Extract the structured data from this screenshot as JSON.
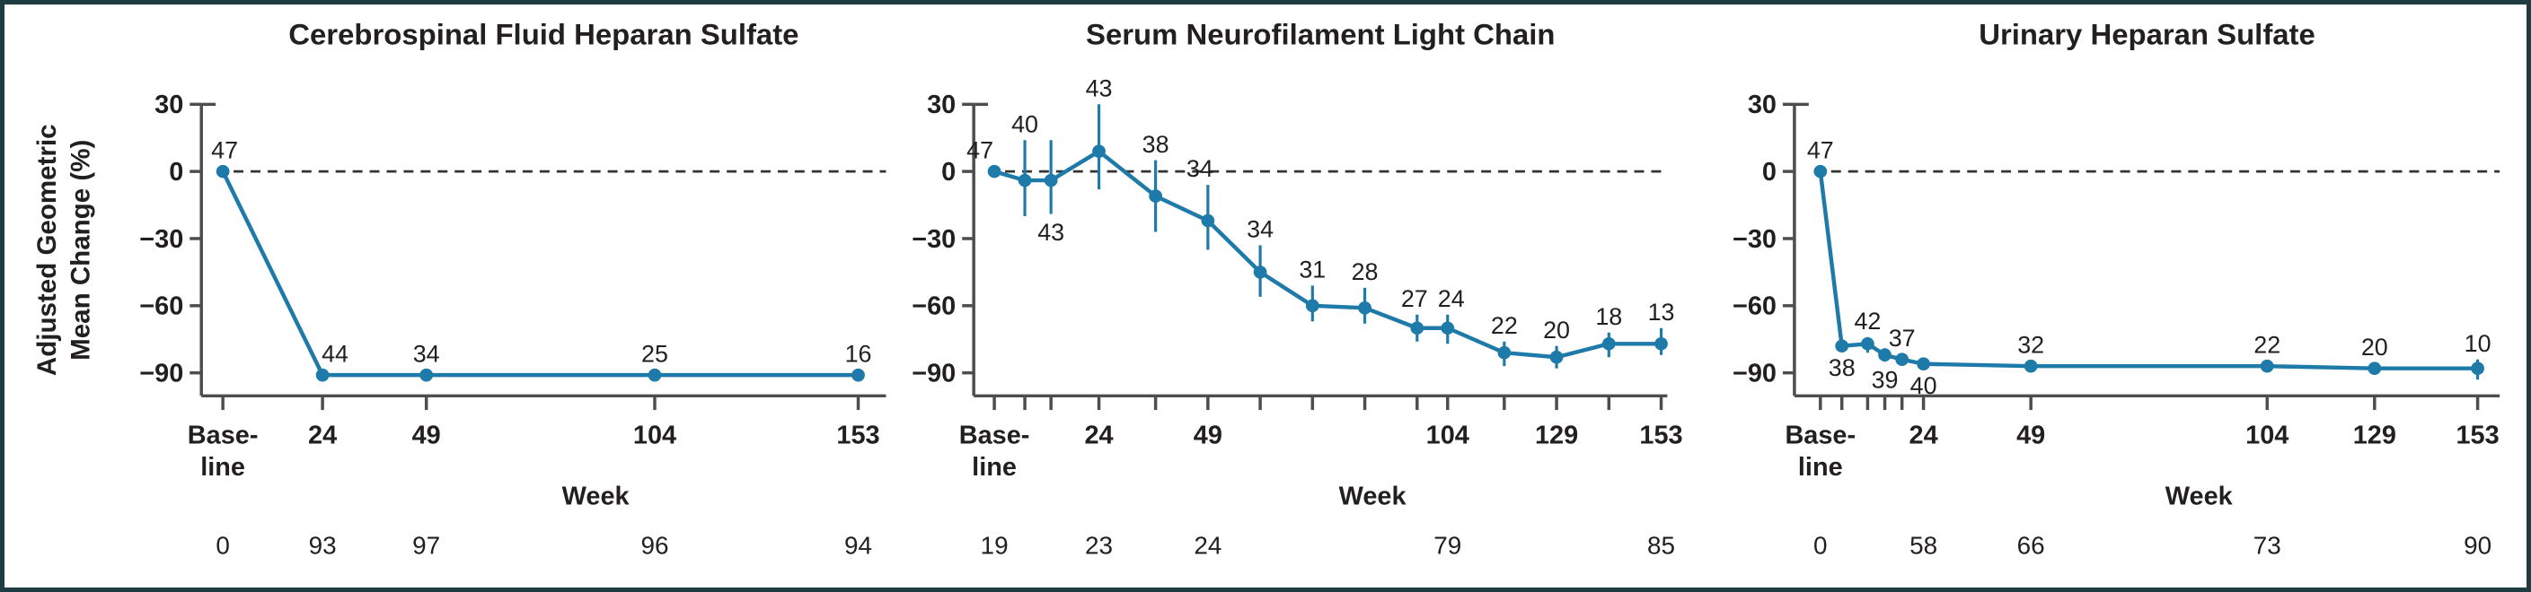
{
  "figure": {
    "border_color": "#1e3d42",
    "background": "#ffffff",
    "accent_blue": "#1e7aa8",
    "title_color": "#1d4046",
    "axis_color": "#4d4d4d",
    "text_color": "#231f20"
  },
  "y_axis": {
    "ylabel_lines": [
      "Adjusted Geometric",
      "Mean Change (%)"
    ],
    "ticks": [
      30,
      0,
      -30,
      -60,
      -90
    ]
  },
  "x_axis": {
    "baseline_label": [
      "Base-",
      "line"
    ],
    "title": "Week"
  },
  "chart_data": [
    {
      "type": "line",
      "title": "Cerebrospinal Fluid Heparan Sulfate",
      "xlabel": "Week",
      "ylabel": "Adjusted Geometric Mean Change (%)",
      "ylim": [
        -100,
        30
      ],
      "yticks": [
        30,
        0,
        -30,
        -60,
        -90
      ],
      "x_labeled_weeks": [
        24,
        49,
        104,
        153
      ],
      "points": [
        {
          "week": 0,
          "value": 0,
          "n": 47,
          "n_pos": "above",
          "n_dx": 2
        },
        {
          "week": 24,
          "value": -91,
          "n": 44,
          "n_pos": "above",
          "n_dx": 14
        },
        {
          "week": 49,
          "value": -91,
          "n": 34,
          "n_pos": "above"
        },
        {
          "week": 104,
          "value": -91,
          "n": 25,
          "n_pos": "above"
        },
        {
          "week": 153,
          "value": -91,
          "n": 16,
          "n_pos": "above"
        }
      ],
      "bottom_row": [
        {
          "week": 0,
          "text": "0"
        },
        {
          "week": 24,
          "text": "93"
        },
        {
          "week": 49,
          "text": "97"
        },
        {
          "week": 104,
          "text": "96"
        },
        {
          "week": 153,
          "text": "94"
        }
      ]
    },
    {
      "type": "line",
      "title": "Serum Neurofilament Light Chain",
      "xlabel": "Week",
      "ylabel": "Adjusted Geometric Mean Change (%)",
      "ylim": [
        -100,
        30
      ],
      "yticks": [
        30,
        0,
        -30,
        -60,
        -90
      ],
      "x_labeled_weeks": [
        24,
        49,
        104,
        129,
        153
      ],
      "points": [
        {
          "week": 0,
          "value": 0,
          "n": 47,
          "n_pos": "above",
          "n_dx": -16
        },
        {
          "week": 7,
          "value": -4,
          "err": [
            -20,
            14
          ],
          "n": 40,
          "n_pos": "above"
        },
        {
          "week": 13,
          "value": -4,
          "err": [
            -19,
            14
          ],
          "n": 43,
          "n_pos": "below"
        },
        {
          "week": 24,
          "value": 9,
          "err": [
            -8,
            30
          ],
          "n": 43,
          "n_pos": "above"
        },
        {
          "week": 37,
          "value": -11,
          "err": [
            -27,
            5
          ],
          "n": 38,
          "n_pos": "above"
        },
        {
          "week": 49,
          "value": -22,
          "err": [
            -35,
            -6
          ],
          "n": 34,
          "n_pos": "above",
          "n_dx": -9
        },
        {
          "week": 61,
          "value": -45,
          "err": [
            -56,
            -33
          ],
          "n": 34,
          "n_pos": "above"
        },
        {
          "week": 73,
          "value": -60,
          "err": [
            -67,
            -51
          ],
          "n": 31,
          "n_pos": "above"
        },
        {
          "week": 85,
          "value": -61,
          "err": [
            -68,
            -52
          ],
          "n": 28,
          "n_pos": "above"
        },
        {
          "week": 97,
          "value": -70,
          "err": [
            -76,
            -64
          ],
          "n": 27,
          "n_pos": "above",
          "n_dx": -3
        },
        {
          "week": 104,
          "value": -70,
          "err": [
            -77,
            -64
          ],
          "n": 24,
          "n_pos": "above",
          "n_dx": 4
        },
        {
          "week": 117,
          "value": -81,
          "err": [
            -87,
            -76
          ],
          "n": 22,
          "n_pos": "above"
        },
        {
          "week": 129,
          "value": -83,
          "err": [
            -88,
            -78
          ],
          "n": 20,
          "n_pos": "above"
        },
        {
          "week": 141,
          "value": -77,
          "err": [
            -83,
            -72
          ],
          "n": 18,
          "n_pos": "above"
        },
        {
          "week": 153,
          "value": -77,
          "err": [
            -82,
            -70
          ],
          "n": 13,
          "n_pos": "above"
        }
      ],
      "bottom_row": [
        {
          "week": 0,
          "text": "19"
        },
        {
          "week": 24,
          "text": "23"
        },
        {
          "week": 49,
          "text": "24"
        },
        {
          "week": 104,
          "text": "79"
        },
        {
          "week": 153,
          "text": "85"
        }
      ]
    },
    {
      "type": "line",
      "title": "Urinary Heparan Sulfate",
      "xlabel": "Week",
      "ylabel": "Adjusted Geometric Mean Change (%)",
      "ylim": [
        -100,
        30
      ],
      "yticks": [
        30,
        0,
        -30,
        -60,
        -90
      ],
      "x_labeled_weeks": [
        24,
        49,
        104,
        129,
        153
      ],
      "points": [
        {
          "week": 0,
          "value": 0,
          "n": 47,
          "n_pos": "above"
        },
        {
          "week": 5,
          "value": -78,
          "n": 38,
          "n_pos": "below"
        },
        {
          "week": 11,
          "value": -77,
          "err": [
            -81,
            -74
          ],
          "n": 42,
          "n_pos": "above"
        },
        {
          "week": 15,
          "value": -82,
          "err": [
            -85,
            -79
          ],
          "n": 39,
          "n_pos": "below"
        },
        {
          "week": 19,
          "value": -84,
          "n": 37,
          "n_pos": "above"
        },
        {
          "week": 24,
          "value": -86,
          "n": 40,
          "n_pos": "below"
        },
        {
          "week": 49,
          "value": -87,
          "n": 32,
          "n_pos": "above"
        },
        {
          "week": 104,
          "value": -87,
          "n": 22,
          "n_pos": "above"
        },
        {
          "week": 129,
          "value": -88,
          "n": 20,
          "n_pos": "above"
        },
        {
          "week": 153,
          "value": -88,
          "err": [
            -93,
            -84
          ],
          "n": 10,
          "n_pos": "above"
        }
      ],
      "bottom_row": [
        {
          "week": 0,
          "text": "0"
        },
        {
          "week": 24,
          "text": "58"
        },
        {
          "week": 49,
          "text": "66"
        },
        {
          "week": 104,
          "text": "73"
        },
        {
          "week": 153,
          "text": "90"
        }
      ]
    }
  ]
}
